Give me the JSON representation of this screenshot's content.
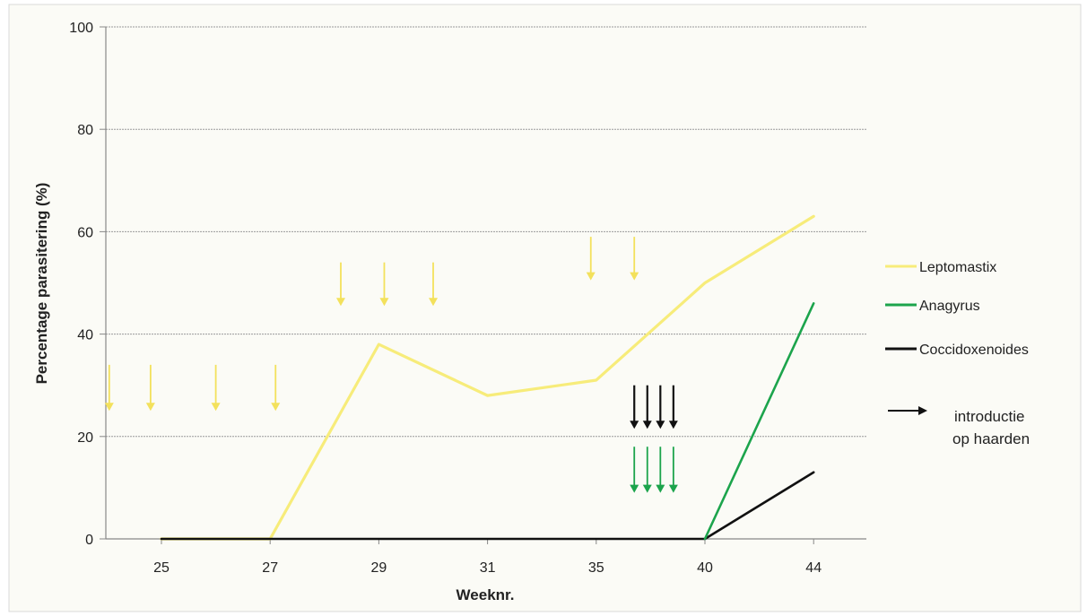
{
  "chart_data": {
    "type": "line",
    "ylabel": "Percentage parasitering (%)",
    "xlabel": "Weeknr.",
    "ylim": [
      0,
      100
    ],
    "yticks": [
      0,
      20,
      40,
      60,
      80,
      100
    ],
    "grid": true,
    "legend_position": "right",
    "categories": [
      "25",
      "27",
      "29",
      "31",
      "35",
      "40",
      "44"
    ],
    "series": [
      {
        "name": "Leptomastix",
        "color": "#f7ec7a",
        "values": [
          0,
          0,
          38,
          28,
          31,
          50,
          63
        ]
      },
      {
        "name": "Anagyrus",
        "color": "#1ca44c",
        "values": [
          0,
          0,
          0,
          0,
          0,
          0,
          46
        ]
      },
      {
        "name": "Coccidoxenoides",
        "color": "#111111",
        "values": [
          0,
          0,
          0,
          0,
          0,
          0,
          13
        ]
      }
    ],
    "legend_extra": {
      "line1": "introductie",
      "line2": "op haarden",
      "color": "#111111"
    },
    "annotations": [
      {
        "category_pos": -0.48,
        "y_top": 34,
        "y_bottom": 25,
        "color": "#f3e15c"
      },
      {
        "category_pos": -0.1,
        "y_top": 34,
        "y_bottom": 25,
        "color": "#f3e15c"
      },
      {
        "category_pos": 0.5,
        "y_top": 34,
        "y_bottom": 25,
        "color": "#f3e15c"
      },
      {
        "category_pos": 1.05,
        "y_top": 34,
        "y_bottom": 25,
        "color": "#f3e15c"
      },
      {
        "category_pos": 1.65,
        "y_top": 54,
        "y_bottom": 45.5,
        "color": "#f3e15c"
      },
      {
        "category_pos": 2.05,
        "y_top": 54,
        "y_bottom": 45.5,
        "color": "#f3e15c"
      },
      {
        "category_pos": 2.5,
        "y_top": 54,
        "y_bottom": 45.5,
        "color": "#f3e15c"
      },
      {
        "category_pos": 3.95,
        "y_top": 59,
        "y_bottom": 50.5,
        "color": "#f3e15c"
      },
      {
        "category_pos": 4.35,
        "y_top": 59,
        "y_bottom": 50.5,
        "color": "#f3e15c"
      },
      {
        "category_pos": 4.35,
        "y_top": 30,
        "y_bottom": 21.5,
        "color": "#111111"
      },
      {
        "category_pos": 4.47,
        "y_top": 30,
        "y_bottom": 21.5,
        "color": "#111111"
      },
      {
        "category_pos": 4.59,
        "y_top": 30,
        "y_bottom": 21.5,
        "color": "#111111"
      },
      {
        "category_pos": 4.71,
        "y_top": 30,
        "y_bottom": 21.5,
        "color": "#111111"
      },
      {
        "category_pos": 4.35,
        "y_top": 18,
        "y_bottom": 9,
        "color": "#1ca44c"
      },
      {
        "category_pos": 4.47,
        "y_top": 18,
        "y_bottom": 9,
        "color": "#1ca44c"
      },
      {
        "category_pos": 4.59,
        "y_top": 18,
        "y_bottom": 9,
        "color": "#1ca44c"
      },
      {
        "category_pos": 4.71,
        "y_top": 18,
        "y_bottom": 9,
        "color": "#1ca44c"
      }
    ]
  }
}
